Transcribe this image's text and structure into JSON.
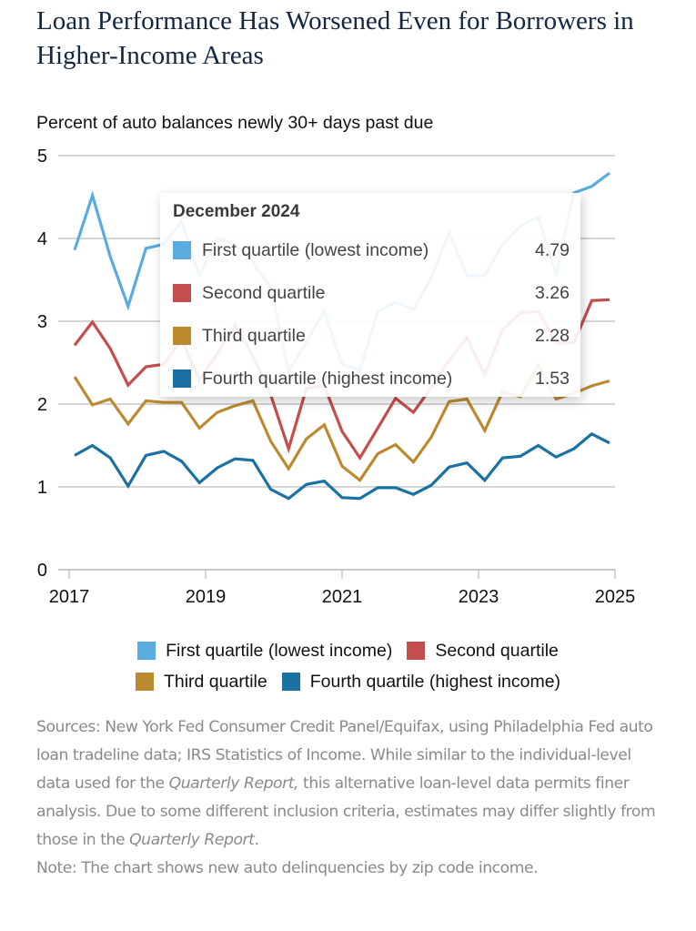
{
  "header": {
    "title": "Loan Performance Has Worsened Even for Borrowers in Higher-Income Areas",
    "subtitle": "Percent of auto balances newly 30+ days past due"
  },
  "tooltip": {
    "title": "December 2024",
    "rows": [
      {
        "label": "First quartile (lowest income)",
        "value": "4.79",
        "color": "#5aabe0"
      },
      {
        "label": "Second quartile",
        "value": "3.26",
        "color": "#c44e4e"
      },
      {
        "label": "Third quartile",
        "value": "2.28",
        "color": "#bb8a2f"
      },
      {
        "label": "Fourth quartile (highest income)",
        "value": "1.53",
        "color": "#1a72a3"
      }
    ]
  },
  "legend": {
    "items": [
      {
        "label": "First quartile (lowest income)",
        "color": "#5aabe0"
      },
      {
        "label": "Second quartile",
        "color": "#c44e4e"
      },
      {
        "label": "Third quartile",
        "color": "#bb8a2f"
      },
      {
        "label": "Fourth quartile (highest income)",
        "color": "#1a72a3"
      }
    ]
  },
  "notes": {
    "sources_1": "Sources: New York Fed Consumer Credit Panel/Equifax, using Philadelphia Fed auto loan tradeline data; IRS Statistics of Income. While similar to the individual-level data used for the ",
    "sources_italic_1": "Quarterly Report,",
    "sources_2": " this alternative loan-level data permits finer analysis. Due to some different inclusion criteria, estimates may differ slightly from those in the ",
    "sources_italic_2": "Quarterly Report",
    "sources_3": ".",
    "note": "Note: The chart shows new auto delinquencies by zip code income."
  },
  "chart_data": {
    "type": "line",
    "title": "Loan Performance Has Worsened Even for Borrowers in Higher-Income Areas",
    "ylabel": "Percent of auto balances newly 30+ days past due",
    "xlabel": "",
    "xlim": [
      2017,
      2025
    ],
    "ylim": [
      0,
      5
    ],
    "x_ticks": [
      "2017",
      "2019",
      "2021",
      "2023",
      "2025"
    ],
    "y_ticks": [
      "0",
      "1",
      "2",
      "3",
      "4",
      "5"
    ],
    "grid": "horizontal",
    "legend_position": "bottom",
    "x_start": 2017.08,
    "x_end": 2024.92,
    "frequency": "quarterly",
    "highlight": "December 2024",
    "series": [
      {
        "name": "First quartile (lowest income)",
        "color": "#5aabe0",
        "values": [
          3.86,
          4.52,
          3.78,
          3.18,
          3.88,
          3.93,
          4.21,
          3.55,
          4.0,
          3.93,
          3.71,
          3.4,
          2.39,
          2.75,
          3.12,
          2.48,
          2.41,
          3.12,
          3.23,
          3.14,
          3.53,
          4.07,
          3.55,
          3.55,
          3.93,
          4.15,
          4.26,
          3.56,
          4.55,
          4.63,
          4.79
        ]
      },
      {
        "name": "Second quartile",
        "color": "#c44e4e",
        "values": [
          2.71,
          2.99,
          2.67,
          2.23,
          2.45,
          2.48,
          2.78,
          2.29,
          2.61,
          2.95,
          2.58,
          2.11,
          1.46,
          2.19,
          2.22,
          1.67,
          1.35,
          1.71,
          2.07,
          1.9,
          2.2,
          2.53,
          2.8,
          2.35,
          2.9,
          3.1,
          3.12,
          2.74,
          2.74,
          3.25,
          3.26
        ]
      },
      {
        "name": "Third quartile",
        "color": "#bb8a2f",
        "values": [
          2.33,
          1.99,
          2.06,
          1.76,
          2.04,
          2.02,
          2.02,
          1.71,
          1.9,
          1.98,
          2.04,
          1.55,
          1.22,
          1.58,
          1.75,
          1.25,
          1.08,
          1.4,
          1.51,
          1.3,
          1.6,
          2.03,
          2.06,
          1.68,
          2.15,
          2.09,
          2.47,
          2.06,
          2.13,
          2.22,
          2.28
        ]
      },
      {
        "name": "Fourth quartile (highest income)",
        "color": "#1a72a3",
        "values": [
          1.38,
          1.5,
          1.35,
          1.01,
          1.38,
          1.43,
          1.31,
          1.05,
          1.23,
          1.34,
          1.32,
          0.97,
          0.86,
          1.03,
          1.07,
          0.87,
          0.86,
          0.99,
          0.99,
          0.91,
          1.02,
          1.24,
          1.29,
          1.08,
          1.35,
          1.37,
          1.5,
          1.36,
          1.46,
          1.64,
          1.53
        ]
      }
    ]
  }
}
